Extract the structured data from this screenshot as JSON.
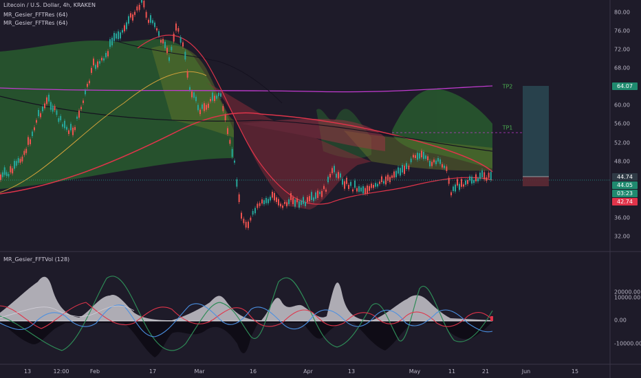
{
  "header": {
    "symbol_line": "Litecoin / U.S. Dollar, 4h, KRAKEN",
    "indicator_1": "MR_Gesier_FFTRes (64)",
    "indicator_2": "MR_Gesier_FFTRes (64)",
    "indicator_3": "MR_Gesier_FFTVol (128)"
  },
  "price_axis": {
    "ticks": [
      "80.00",
      "76.00",
      "72.00",
      "68.00",
      "64.00",
      "60.00",
      "56.00",
      "52.00",
      "48.00",
      "44.00",
      "40.00",
      "36.00",
      "32.00"
    ],
    "tags": {
      "tp2": "64.07",
      "target_top": "44.74",
      "current": "44.05",
      "countdown": "03:23",
      "stop": "42.74"
    }
  },
  "volume_axis": {
    "ticks": [
      "20000.00",
      "10000.00",
      "0.00",
      "-10000.00"
    ]
  },
  "time_axis": {
    "ticks": [
      "13",
      "12:00",
      "Feb",
      "17",
      "Mar",
      "16",
      "Apr",
      "13",
      "May",
      "11",
      "21",
      "Jun",
      "15"
    ]
  },
  "annotations": {
    "tp1": "TP1",
    "tp2": "TP2"
  },
  "colors": {
    "background": "#1e1b29",
    "bull": "#26a69a",
    "bear": "#ef5350",
    "magenta_line": "#c23bd1",
    "tp_green": "#4caf50",
    "target_box": "#2b4b55",
    "stop_box": "#5c2a34"
  }
}
